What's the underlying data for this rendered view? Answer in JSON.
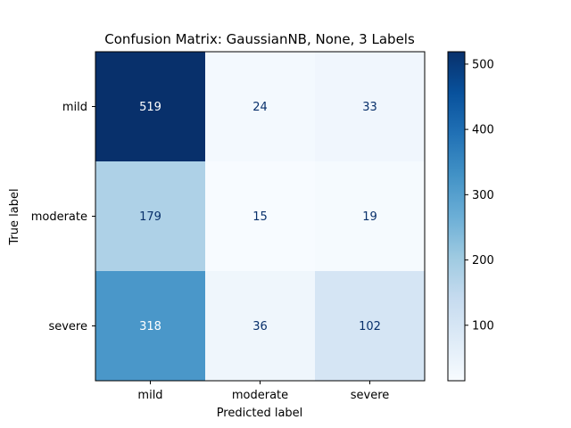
{
  "chart_data": {
    "type": "heatmap",
    "title": "Confusion Matrix: GaussianNB, None, 3 Labels",
    "xlabel": "Predicted label",
    "ylabel": "True label",
    "x_categories": [
      "mild",
      "moderate",
      "severe"
    ],
    "y_categories": [
      "mild",
      "moderate",
      "severe"
    ],
    "values": [
      [
        519,
        24,
        33
      ],
      [
        179,
        15,
        19
      ],
      [
        318,
        36,
        102
      ]
    ],
    "colormap": "Blues",
    "colorbar": {
      "vmin": 15,
      "vmax": 519,
      "ticks": [
        100,
        200,
        300,
        400,
        500
      ]
    },
    "text_colors": {
      "light": "#ffffff",
      "dark": "#08306b"
    }
  }
}
